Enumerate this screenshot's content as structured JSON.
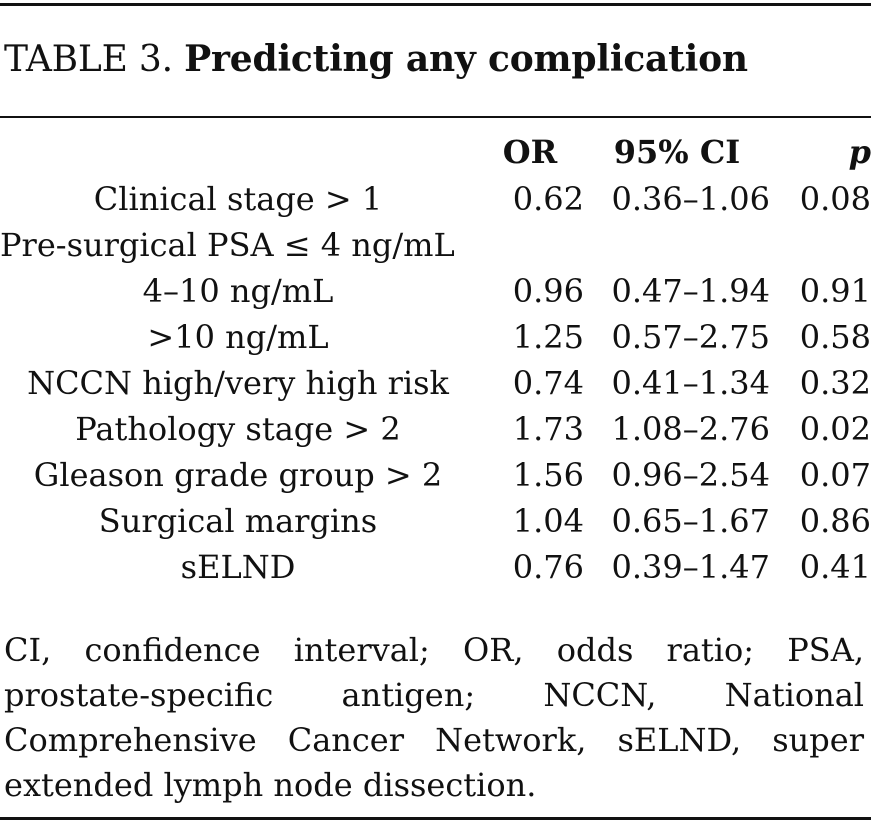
{
  "caption": {
    "label": "TABLE 3.",
    "title": "Predicting any complication"
  },
  "columns": {
    "label": "",
    "or": "OR",
    "ci": "95% CI",
    "p": "p"
  },
  "rows": [
    {
      "label": "Clinical stage > 1",
      "or": "0.62",
      "ci": "0.36–1.06",
      "p": "0.08",
      "align": "center"
    },
    {
      "label": "Pre-surgical PSA ≤ 4 ng/mL",
      "or": "",
      "ci": "",
      "p": "",
      "align": "left"
    },
    {
      "label": "4–10 ng/mL",
      "or": "0.96",
      "ci": "0.47–1.94",
      "p": "0.91",
      "align": "center"
    },
    {
      "label": ">10 ng/mL",
      "or": "1.25",
      "ci": "0.57–2.75",
      "p": "0.58",
      "align": "center"
    },
    {
      "label": "NCCN high/very high risk",
      "or": "0.74",
      "ci": "0.41–1.34",
      "p": "0.32",
      "align": "center"
    },
    {
      "label": "Pathology stage > 2",
      "or": "1.73",
      "ci": "1.08–2.76",
      "p": "0.02",
      "align": "center"
    },
    {
      "label": "Gleason grade group > 2",
      "or": "1.56",
      "ci": "0.96–2.54",
      "p": "0.07",
      "align": "center"
    },
    {
      "label": "Surgical margins",
      "or": "1.04",
      "ci": "0.65–1.67",
      "p": "0.86",
      "align": "center"
    },
    {
      "label": "sELND",
      "or": "0.76",
      "ci": "0.39–1.47",
      "p": "0.41",
      "align": "center"
    }
  ],
  "footnote": "CI, confidence interval; OR, odds ratio; PSA, prostate-specific antigen; NCCN, National Comprehensive Cancer Network, sELND, super extended lymph node dissection."
}
